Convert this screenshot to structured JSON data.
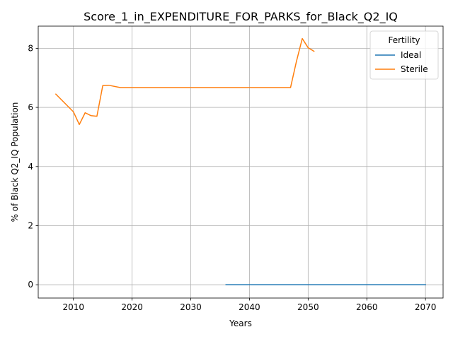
{
  "chart_data": {
    "type": "line",
    "title": "Score_1_in_EXPENDITURE_FOR_PARKS_for_Black_Q2_IQ",
    "xlabel": "Years",
    "ylabel": "% of Black Q2_IQ Population",
    "xlim": [
      2004,
      2073
    ],
    "ylim": [
      -0.45,
      8.75
    ],
    "xticks": [
      2010,
      2020,
      2030,
      2040,
      2050,
      2060,
      2070
    ],
    "yticks": [
      0,
      2,
      4,
      6,
      8
    ],
    "grid": true,
    "legend": {
      "title": "Fertility",
      "position": "top-right"
    },
    "series": [
      {
        "name": "Ideal",
        "color": "#1f77b4",
        "x": [
          2036,
          2040,
          2045,
          2050,
          2055,
          2060,
          2065,
          2070
        ],
        "y": [
          0,
          0,
          0,
          0,
          0,
          0,
          0,
          0
        ]
      },
      {
        "name": "Sterile",
        "color": "#ff7f0e",
        "x": [
          2007,
          2010,
          2011,
          2012,
          2013,
          2014,
          2015,
          2016,
          2018,
          2020,
          2025,
          2030,
          2035,
          2040,
          2045,
          2047,
          2048,
          2049,
          2050,
          2051
        ],
        "y": [
          6.45,
          5.85,
          5.42,
          5.82,
          5.72,
          5.7,
          6.74,
          6.75,
          6.67,
          6.67,
          6.67,
          6.67,
          6.67,
          6.67,
          6.67,
          6.67,
          7.55,
          8.33,
          8.02,
          7.9
        ]
      }
    ]
  }
}
